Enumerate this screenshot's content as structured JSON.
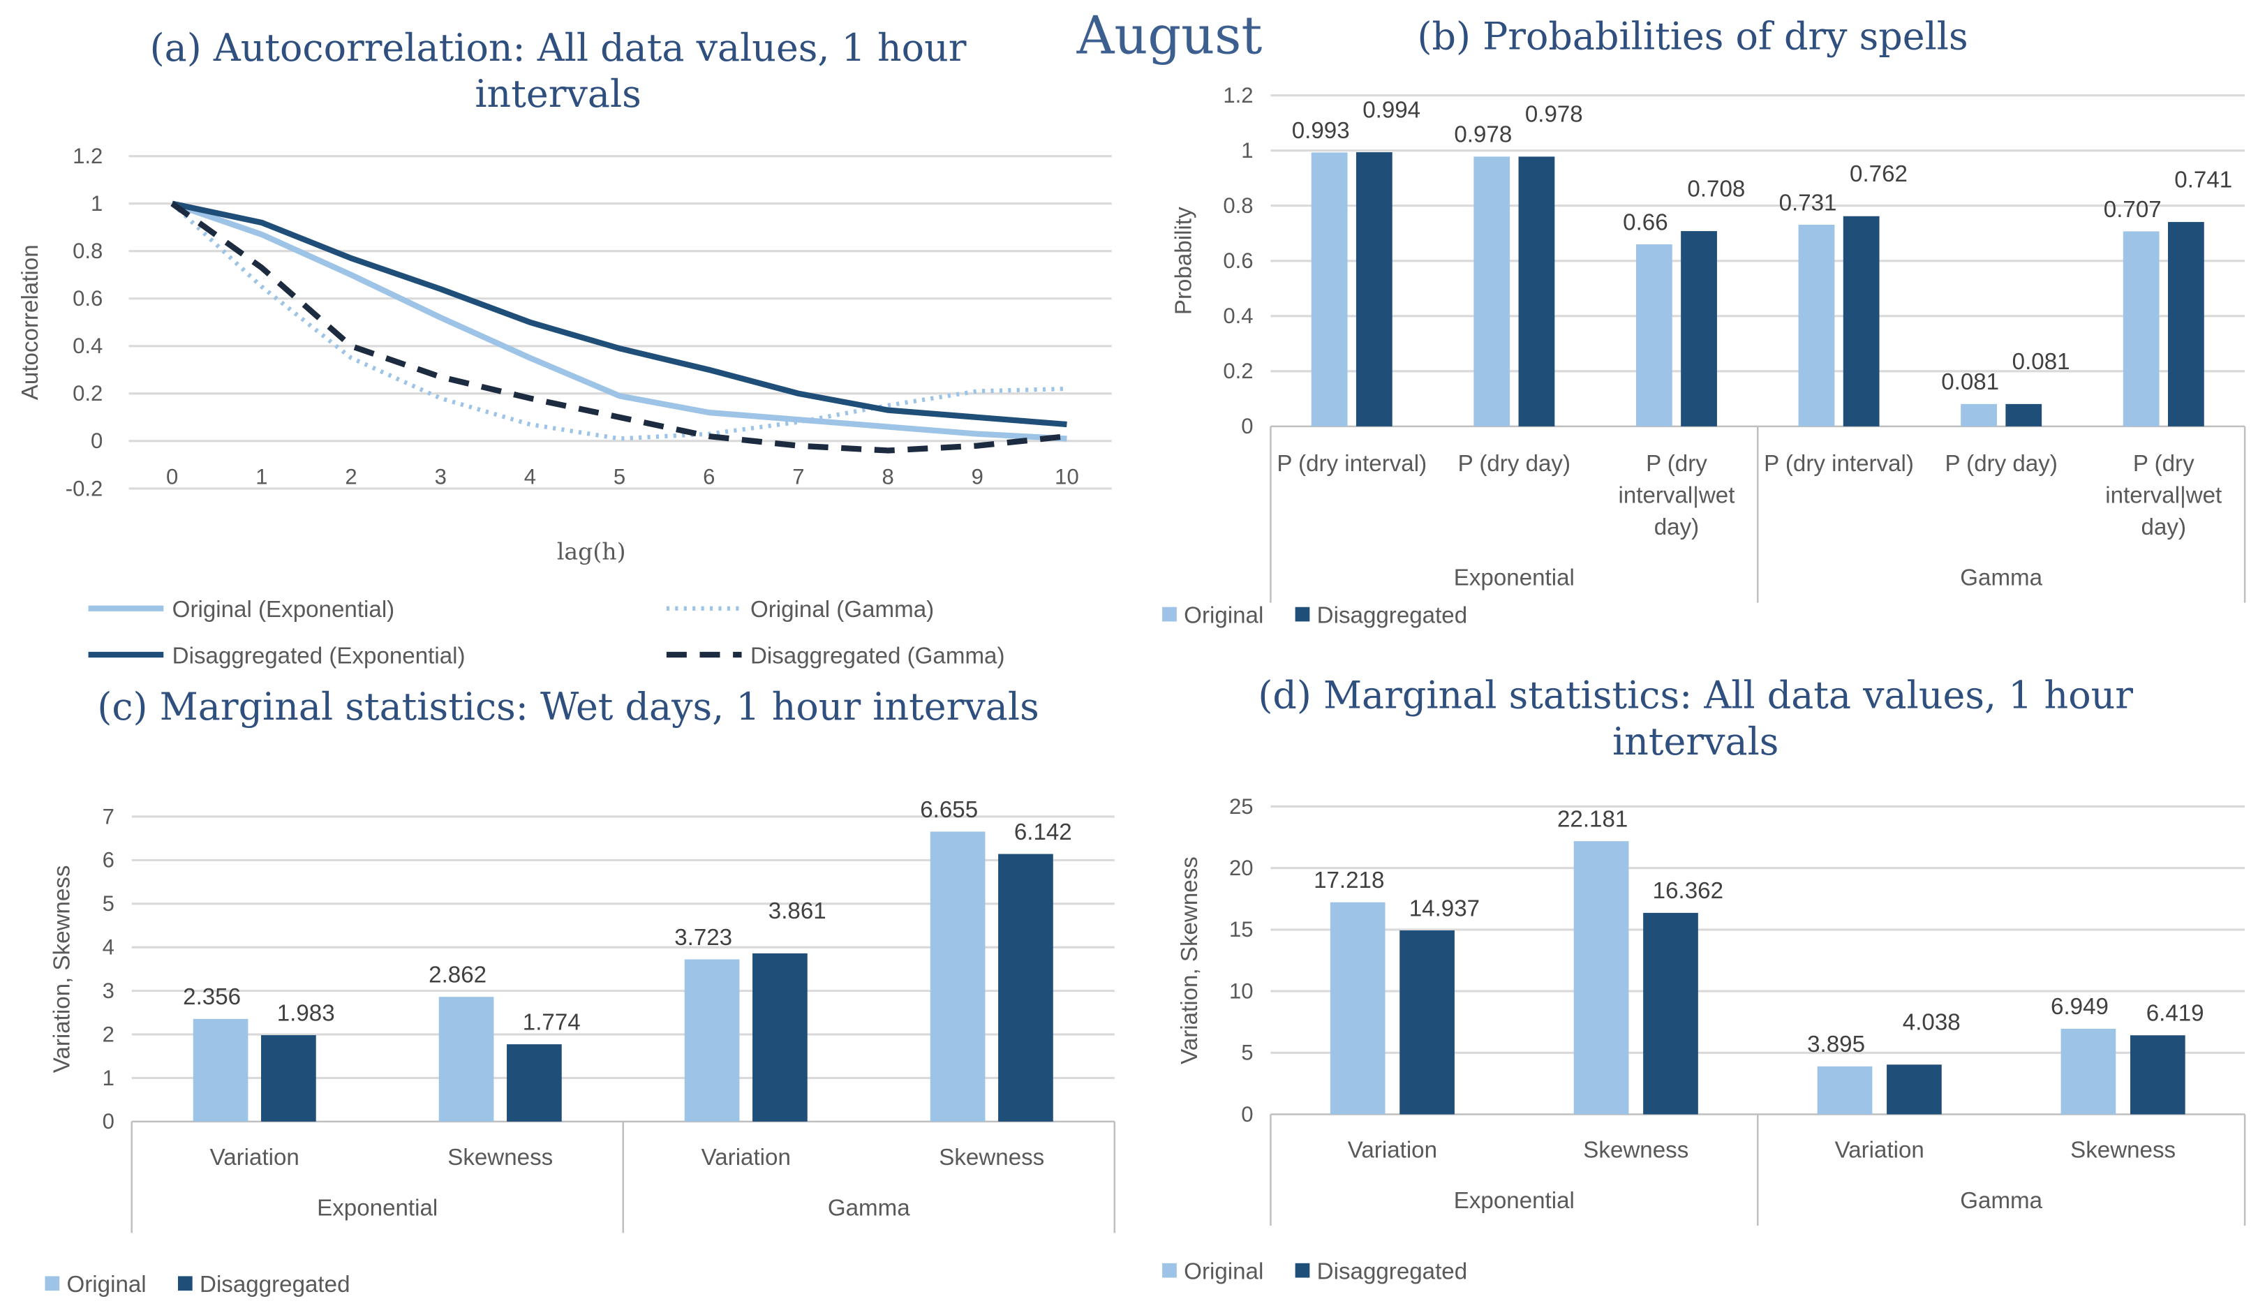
{
  "header": {
    "month": "August"
  },
  "colors": {
    "original": "#9dc3e6",
    "disaggregated": "#1f4e79",
    "dashed": "#1c2b3f"
  },
  "chart_data": [
    {
      "id": "a",
      "type": "line",
      "title": "(a) Autocorrelation: All data values, 1 hour intervals",
      "title_lines": [
        "(a) Autocorrelation: All data values, 1 hour",
        "intervals"
      ],
      "xlabel": "lag(h)",
      "ylabel": "Autocorrelation",
      "x": [
        0,
        1,
        2,
        3,
        4,
        5,
        6,
        7,
        8,
        9,
        10
      ],
      "ylim": [
        -0.2,
        1.2
      ],
      "yticks": [
        -0.2,
        0,
        0.2,
        0.4,
        0.6,
        0.8,
        1,
        1.2
      ],
      "yticklabels": [
        "-0.2",
        "0",
        "0.2",
        "0.4",
        "0.6",
        "0.8",
        "1",
        "1.2"
      ],
      "grid": true,
      "legend": "bottom",
      "series": [
        {
          "name": "Original (Exponential)",
          "style": "solid-light",
          "values": [
            1,
            0.87,
            0.7,
            0.52,
            0.35,
            0.19,
            0.12,
            0.09,
            0.06,
            0.03,
            0.01
          ]
        },
        {
          "name": "Original (Gamma)",
          "style": "dotted-light",
          "values": [
            1,
            0.65,
            0.35,
            0.18,
            0.07,
            0.01,
            0.03,
            0.08,
            0.15,
            0.21,
            0.22
          ]
        },
        {
          "name": "Disaggregated (Exponential)",
          "style": "solid-dark",
          "values": [
            1,
            0.92,
            0.77,
            0.64,
            0.5,
            0.39,
            0.3,
            0.2,
            0.13,
            0.1,
            0.07
          ]
        },
        {
          "name": "Disaggregated (Gamma)",
          "style": "dashed-dark",
          "values": [
            1,
            0.73,
            0.4,
            0.27,
            0.18,
            0.1,
            0.02,
            -0.02,
            -0.04,
            -0.02,
            0.02
          ]
        }
      ]
    },
    {
      "id": "b",
      "type": "bar",
      "title": "(b) Probabilities of dry spells",
      "title_lines": [
        "(b) Probabilities of dry spells"
      ],
      "ylabel": "Probability",
      "ylim": [
        0,
        1.2
      ],
      "yticklabels": [
        "0",
        "0.2",
        "0.4",
        "0.6",
        "0.8",
        "1",
        "1.2"
      ],
      "categories": [
        [
          "P (dry interval)"
        ],
        [
          "P (dry day)"
        ],
        [
          "P (dry",
          "interval|wet",
          "day)"
        ],
        [
          "P (dry interval)"
        ],
        [
          "P (dry day)"
        ],
        [
          "P (dry",
          "interval|wet",
          "day)"
        ]
      ],
      "groups": [
        "Exponential",
        "Gamma"
      ],
      "series": [
        {
          "name": "Original",
          "values": [
            0.993,
            0.978,
            0.66,
            0.731,
            0.081,
            0.707
          ],
          "labels": [
            "0.993",
            "0.978",
            "0.66",
            "0.731",
            "0.081",
            "0.707"
          ]
        },
        {
          "name": "Disaggregated",
          "values": [
            0.994,
            0.978,
            0.708,
            0.762,
            0.081,
            0.741
          ],
          "labels": [
            "0.994",
            "0.978",
            "0.708",
            "0.762",
            "0.081",
            "0.741"
          ]
        }
      ],
      "legend": "bottom-left"
    },
    {
      "id": "c",
      "type": "bar",
      "title": "(c) Marginal statistics: Wet days, 1 hour intervals",
      "title_lines": [
        "(c) Marginal statistics: Wet days, 1 hour intervals"
      ],
      "ylabel": "Variation, Skewness",
      "ylim": [
        0,
        7
      ],
      "yticklabels": [
        "0",
        "1",
        "2",
        "3",
        "4",
        "5",
        "6",
        "7"
      ],
      "categories": [
        [
          "Variation"
        ],
        [
          "Skewness"
        ],
        [
          "Variation"
        ],
        [
          "Skewness"
        ]
      ],
      "groups": [
        "Exponential",
        "Gamma"
      ],
      "series": [
        {
          "name": "Original",
          "values": [
            2.356,
            2.862,
            3.723,
            6.655
          ],
          "labels": [
            "2.356",
            "2.862",
            "3.723",
            "6.655"
          ]
        },
        {
          "name": "Disaggregated",
          "values": [
            1.983,
            1.774,
            3.861,
            6.142
          ],
          "labels": [
            "1.983",
            "1.774",
            "3.861",
            "6.142"
          ]
        }
      ],
      "legend": "bottom-left"
    },
    {
      "id": "d",
      "type": "bar",
      "title": "(d) Marginal statistics: All data values, 1 hour intervals",
      "title_lines": [
        "(d) Marginal statistics: All data values, 1 hour",
        "intervals"
      ],
      "ylabel": "Variation, Skewness",
      "ylim": [
        0,
        25
      ],
      "yticklabels": [
        "0",
        "5",
        "10",
        "15",
        "20",
        "25"
      ],
      "categories": [
        [
          "Variation"
        ],
        [
          "Skewness"
        ],
        [
          "Variation"
        ],
        [
          "Skewness"
        ]
      ],
      "groups": [
        "Exponential",
        "Gamma"
      ],
      "series": [
        {
          "name": "Original",
          "values": [
            17.218,
            22.181,
            3.895,
            6.949
          ],
          "labels": [
            "17.218",
            "22.181",
            "3.895",
            "6.949"
          ]
        },
        {
          "name": "Disaggregated",
          "values": [
            14.937,
            16.362,
            4.038,
            6.419
          ],
          "labels": [
            "14.937",
            "16.362",
            "4.038",
            "6.419"
          ]
        }
      ],
      "legend": "bottom-left"
    }
  ]
}
